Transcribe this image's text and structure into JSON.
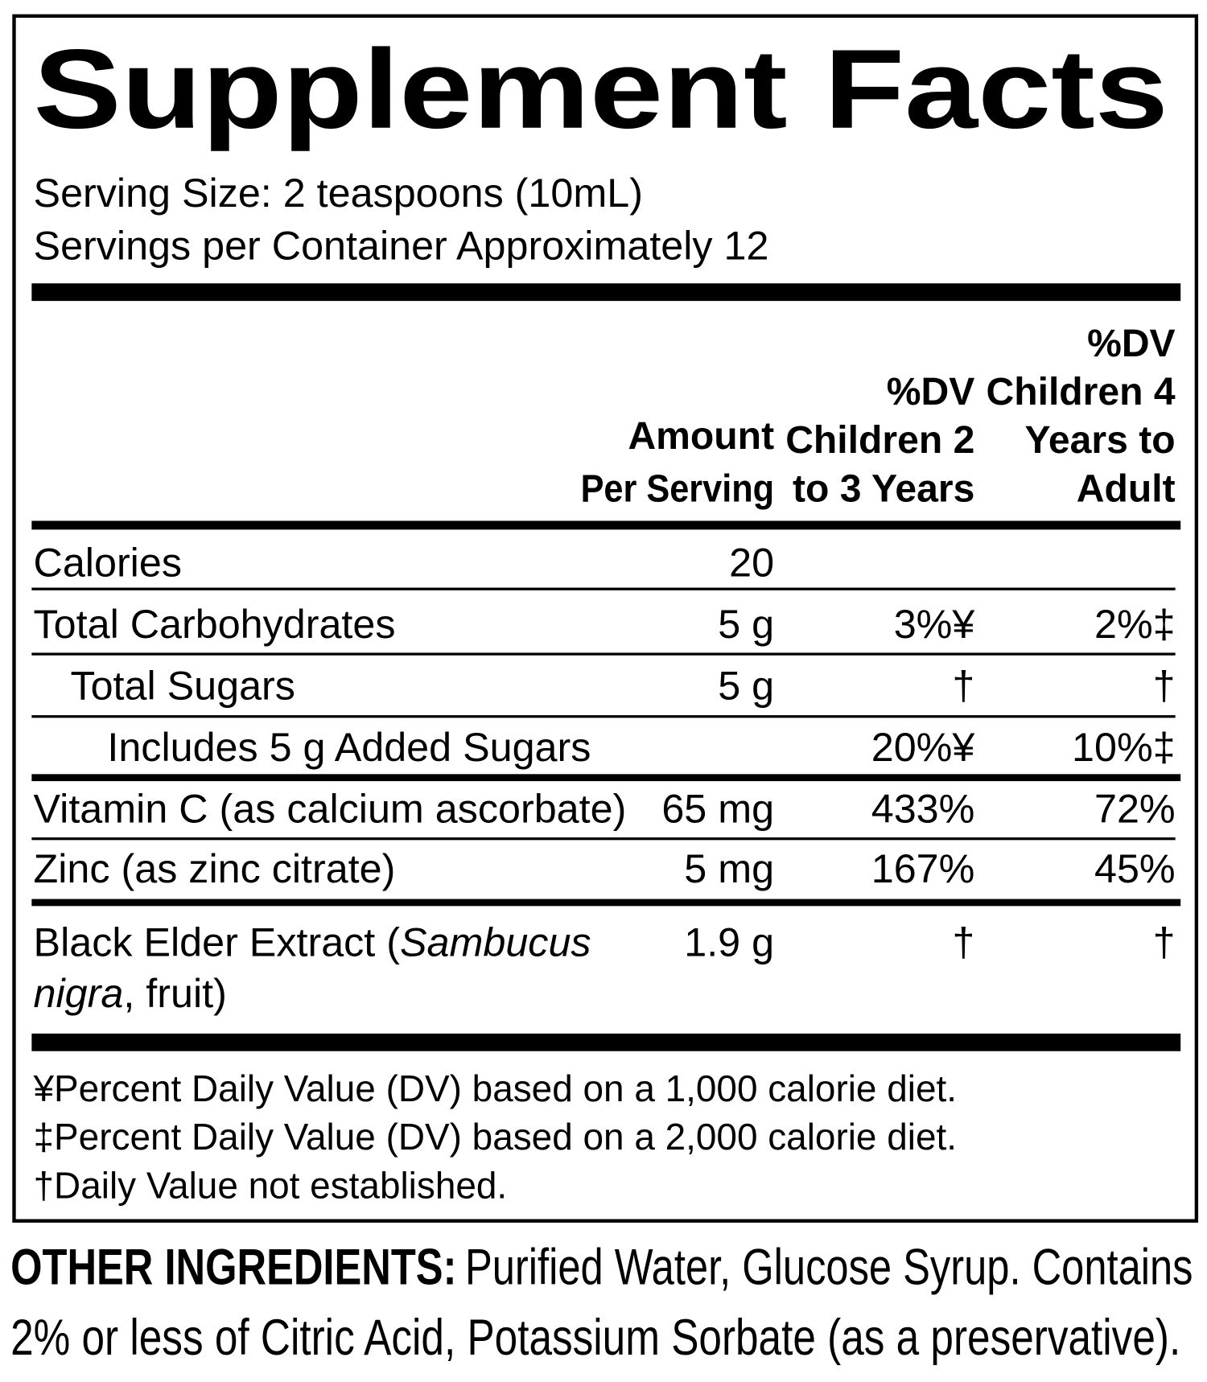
{
  "header": {
    "title": "Supplement Facts",
    "serving_size": "Serving Size: 2 teaspoons (10mL)",
    "servings_per_container": "Servings per Container Approximately 12"
  },
  "table": {
    "columns": {
      "amount": [
        "Amount",
        "Per Serving"
      ],
      "dv_children_2_3": [
        "%DV",
        "Children 2",
        "to 3 Years"
      ],
      "dv_children_4_adult": [
        "%DV",
        "Children 4",
        "Years to",
        "Adult"
      ]
    },
    "rows": [
      {
        "name": "Calories",
        "amount": "20"
      },
      {
        "name": "Total Carbohydrates",
        "amount": "5 g",
        "dv_children_2_3": "3%¥",
        "dv_children_4_adult": "2%‡"
      },
      {
        "name": "Total Sugars",
        "amount": "5 g",
        "dv_children_2_3": "†",
        "dv_children_4_adult": "†"
      },
      {
        "name": "Includes 5 g Added Sugars",
        "dv_children_2_3": "20%¥",
        "dv_children_4_adult": "10%‡"
      },
      {
        "name": "Vitamin C (as calcium ascorbate)",
        "amount": "65 mg",
        "dv_children_2_3": "433%",
        "dv_children_4_adult": "72%"
      },
      {
        "name": "Zinc (as zinc citrate)",
        "amount": "5 mg",
        "dv_children_2_3": "167%",
        "dv_children_4_adult": "45%"
      },
      {
        "name_parts": [
          "Black Elder Extract (",
          "Sambucus",
          "nigra",
          ", fruit)"
        ],
        "amount": "1.9 g",
        "dv_children_2_3": "†",
        "dv_children_4_adult": "†"
      }
    ]
  },
  "footnotes": [
    "¥Percent Daily Value (DV) based on a 1,000 calorie diet.",
    "‡Percent Daily Value (DV) based on a 2,000 calorie diet.",
    "†Daily Value not established."
  ],
  "other_ingredients": {
    "label": "OTHER INGREDIENTS:",
    "lines": [
      "Purified Water, Glucose Syrup. Contains",
      "2% or less of Citric Acid, Potassium Sorbate (as a preservative)."
    ]
  }
}
